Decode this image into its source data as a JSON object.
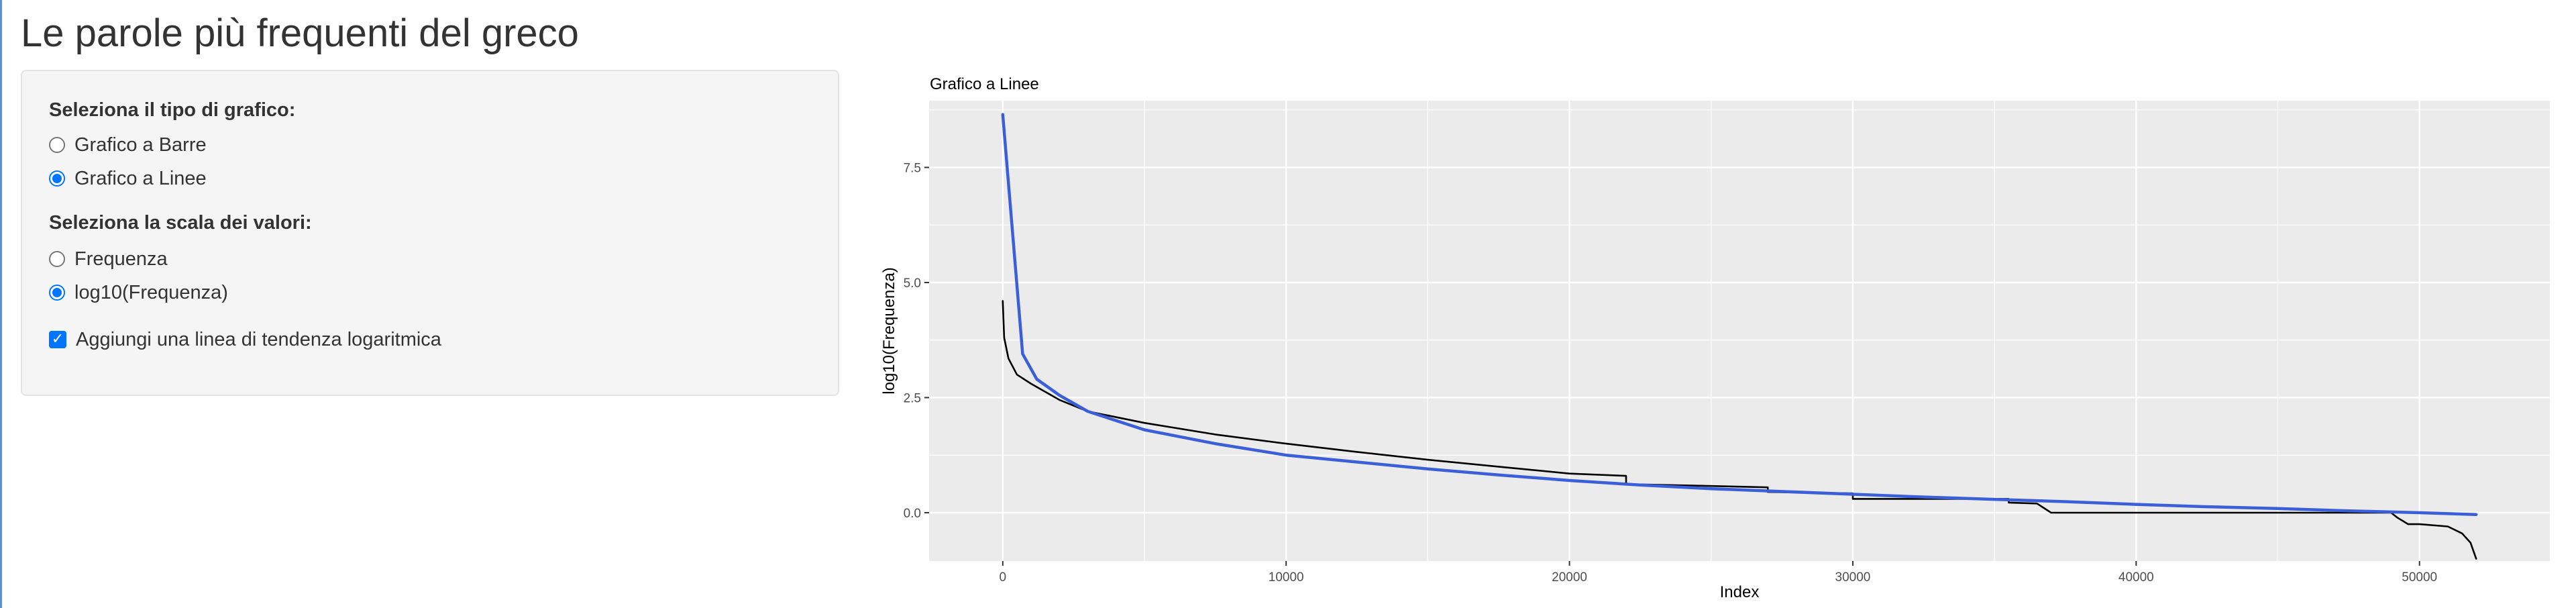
{
  "page": {
    "title": "Le parole più frequenti del greco"
  },
  "sidebar": {
    "chart_type": {
      "label": "Seleziona il tipo di grafico:",
      "options": [
        {
          "label": "Grafico a Barre",
          "selected": false
        },
        {
          "label": "Grafico a Linee",
          "selected": true
        }
      ]
    },
    "scale": {
      "label": "Seleziona la scala dei valori:",
      "options": [
        {
          "label": "Frequenza",
          "selected": false
        },
        {
          "label": "log10(Frequenza)",
          "selected": true
        }
      ]
    },
    "trend": {
      "label": "Aggiungi una linea di tendenza logaritmica",
      "checked": true
    }
  },
  "colors": {
    "accent": "#0075ff",
    "trend_line": "#3a5fd9",
    "data_line": "#000000",
    "panel_bg": "#ebebeb"
  },
  "chart_data": {
    "type": "line",
    "title": "Grafico a Linee",
    "xlabel": "Index",
    "ylabel": "log10(Frequenza)",
    "xlim": [
      -2600,
      54600
    ],
    "ylim": [
      -1.05,
      8.95
    ],
    "xticks": [
      0,
      10000,
      20000,
      30000,
      40000,
      50000
    ],
    "xtick_labels": [
      "0",
      "10000",
      "20000",
      "30000",
      "40000",
      "50000"
    ],
    "yticks": [
      0,
      2.5,
      5,
      7.5
    ],
    "ytick_labels": [
      "0.0",
      "2.5",
      "5.0",
      "7.5"
    ],
    "grid": true,
    "series": [
      {
        "role": "data",
        "color": "#000000",
        "x": [
          0,
          50,
          200,
          500,
          1000,
          2000,
          3000,
          5000,
          7500,
          10000,
          12500,
          15000,
          17500,
          20000,
          22000,
          22000,
          25000,
          27000,
          27000,
          30000,
          30000,
          33000,
          35500,
          35500,
          36500,
          37000,
          40000,
          44000,
          48000,
          49000,
          49200,
          49600,
          50000,
          51000,
          51500,
          51800,
          52000
        ],
        "y": [
          4.6,
          3.8,
          3.35,
          3.0,
          2.8,
          2.45,
          2.2,
          1.95,
          1.7,
          1.5,
          1.32,
          1.15,
          1.0,
          0.85,
          0.8,
          0.62,
          0.58,
          0.55,
          0.45,
          0.42,
          0.3,
          0.3,
          0.3,
          0.22,
          0.2,
          0.0,
          0.0,
          0.0,
          0.0,
          0.0,
          -0.1,
          -0.25,
          -0.25,
          -0.3,
          -0.45,
          -0.65,
          -1.0
        ]
      },
      {
        "role": "trend",
        "color": "#3a5fd9",
        "x": [
          0,
          700,
          1200,
          2000,
          3000,
          5000,
          7500,
          10000,
          12500,
          15000,
          17500,
          20000,
          22500,
          25000,
          27500,
          30000,
          32500,
          35000,
          37500,
          40000,
          42500,
          45000,
          47500,
          50000,
          52000
        ],
        "y": [
          8.65,
          3.45,
          2.9,
          2.55,
          2.2,
          1.8,
          1.5,
          1.25,
          1.1,
          0.95,
          0.82,
          0.7,
          0.6,
          0.52,
          0.46,
          0.4,
          0.34,
          0.29,
          0.24,
          0.18,
          0.13,
          0.09,
          0.04,
          0.0,
          -0.04
        ]
      }
    ]
  }
}
